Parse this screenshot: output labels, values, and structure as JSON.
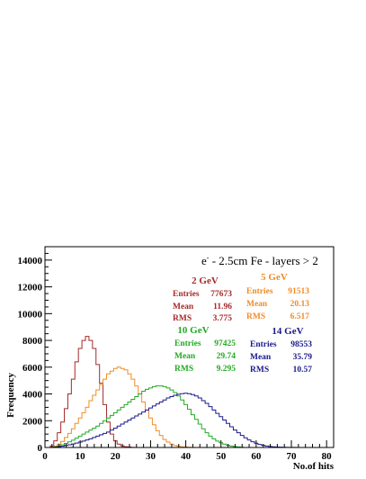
{
  "chart_data": {
    "type": "histogram",
    "title_particle": "e",
    "title_superscript": "-",
    "title_rest": " - 2.5cm Fe - layers > 2",
    "xlabel": "No.of hits",
    "ylabel": "Frequency",
    "xlim": [
      0,
      82
    ],
    "ylim": [
      0,
      15000
    ],
    "x_ticks": [
      0,
      10,
      20,
      30,
      40,
      50,
      60,
      70,
      80
    ],
    "y_ticks": [
      0,
      2000,
      4000,
      6000,
      8000,
      10000,
      12000,
      14000
    ],
    "bin_width": 1,
    "grid": false,
    "series": [
      {
        "name": "2 GeV",
        "color": "#a52a2a",
        "stats": {
          "entries_label": "Entries",
          "entries": "77673",
          "mean_label": "Mean",
          "mean": "11.96",
          "rms_label": "RMS",
          "rms": "3.775"
        },
        "x": [
          1,
          2,
          3,
          4,
          5,
          6,
          7,
          8,
          9,
          10,
          11,
          12,
          13,
          14,
          15,
          16,
          17,
          18,
          19,
          20,
          21,
          22,
          23,
          24,
          25
        ],
        "values": [
          0,
          120,
          500,
          1100,
          1900,
          2900,
          4000,
          5100,
          6400,
          7400,
          8000,
          8300,
          8000,
          7400,
          6200,
          4800,
          3200,
          1900,
          1000,
          500,
          250,
          120,
          60,
          30,
          10
        ]
      },
      {
        "name": "5 GeV",
        "color": "#f08c28",
        "stats": {
          "entries_label": "Entries",
          "entries": "91513",
          "mean_label": "Mean",
          "mean": "20.13",
          "rms_label": "RMS",
          "rms": "6.517"
        },
        "x": [
          1,
          2,
          3,
          4,
          5,
          6,
          7,
          8,
          9,
          10,
          11,
          12,
          13,
          14,
          15,
          16,
          17,
          18,
          19,
          20,
          21,
          22,
          23,
          24,
          25,
          26,
          27,
          28,
          29,
          30,
          31,
          32,
          33,
          34,
          35,
          36,
          37,
          38,
          39,
          40,
          41,
          42
        ],
        "values": [
          0,
          20,
          100,
          250,
          450,
          750,
          1050,
          1400,
          1800,
          2200,
          2600,
          3000,
          3500,
          3900,
          4300,
          4700,
          5100,
          5500,
          5700,
          5900,
          6000,
          5900,
          5800,
          5500,
          5100,
          4600,
          4000,
          3400,
          2800,
          2200,
          1700,
          1250,
          900,
          600,
          400,
          250,
          150,
          90,
          50,
          30,
          15,
          5
        ]
      },
      {
        "name": "10 GeV",
        "color": "#22aa22",
        "stats": {
          "entries_label": "Entries",
          "entries": "97425",
          "mean_label": "Mean",
          "mean": "29.74",
          "rms_label": "RMS",
          "rms": "9.295"
        },
        "x": [
          1,
          2,
          3,
          4,
          5,
          6,
          7,
          8,
          9,
          10,
          11,
          12,
          13,
          14,
          15,
          16,
          17,
          18,
          19,
          20,
          21,
          22,
          23,
          24,
          25,
          26,
          27,
          28,
          29,
          30,
          31,
          32,
          33,
          34,
          35,
          36,
          37,
          38,
          39,
          40,
          41,
          42,
          43,
          44,
          45,
          46,
          47,
          48,
          49,
          50,
          51,
          52,
          53,
          54,
          55,
          56
        ],
        "values": [
          0,
          20,
          60,
          120,
          200,
          300,
          420,
          550,
          700,
          850,
          1000,
          1150,
          1300,
          1450,
          1600,
          1800,
          2000,
          2200,
          2400,
          2600,
          2800,
          3000,
          3200,
          3400,
          3600,
          3800,
          4000,
          4200,
          4350,
          4450,
          4550,
          4600,
          4600,
          4550,
          4450,
          4300,
          4100,
          3850,
          3550,
          3200,
          2850,
          2450,
          2100,
          1750,
          1400,
          1100,
          850,
          650,
          480,
          350,
          250,
          170,
          110,
          70,
          40,
          20
        ]
      },
      {
        "name": "14 GeV",
        "color": "#1a1a8c",
        "stats": {
          "entries_label": "Entries",
          "entries": "98553",
          "mean_label": "Mean",
          "mean": "35.79",
          "rms_label": "RMS",
          "rms": "10.57"
        },
        "x": [
          1,
          2,
          3,
          4,
          5,
          6,
          7,
          8,
          9,
          10,
          11,
          12,
          13,
          14,
          15,
          16,
          17,
          18,
          19,
          20,
          21,
          22,
          23,
          24,
          25,
          26,
          27,
          28,
          29,
          30,
          31,
          32,
          33,
          34,
          35,
          36,
          37,
          38,
          39,
          40,
          41,
          42,
          43,
          44,
          45,
          46,
          47,
          48,
          49,
          50,
          51,
          52,
          53,
          54,
          55,
          56,
          57,
          58,
          59,
          60,
          61,
          62,
          63,
          64,
          65,
          66,
          67,
          68,
          69,
          70,
          71,
          72,
          73,
          74,
          75,
          76,
          77,
          78,
          79,
          80
        ],
        "values": [
          0,
          10,
          30,
          60,
          100,
          150,
          200,
          260,
          330,
          400,
          480,
          560,
          650,
          750,
          850,
          950,
          1050,
          1150,
          1300,
          1450,
          1600,
          1750,
          1900,
          2050,
          2200,
          2350,
          2500,
          2650,
          2800,
          2950,
          3100,
          3250,
          3400,
          3550,
          3700,
          3800,
          3900,
          3980,
          4020,
          4050,
          4020,
          3950,
          3850,
          3700,
          3500,
          3300,
          3050,
          2800,
          2550,
          2300,
          2050,
          1800,
          1550,
          1300,
          1100,
          900,
          720,
          560,
          430,
          320,
          230,
          160,
          110,
          75,
          50,
          35,
          25,
          15,
          10,
          8,
          6,
          4,
          3,
          2,
          2,
          1,
          1,
          0,
          0,
          0
        ]
      }
    ]
  }
}
